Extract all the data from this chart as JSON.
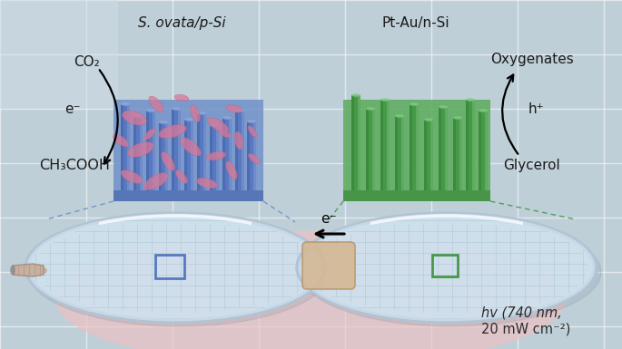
{
  "bg_color": "#bfcfd8",
  "white_line_color": "#d8e4ea",
  "pink_glow_color": "#f2bfbf",
  "left_label": "S. ovata/p-Si",
  "right_label": "Pt-Au/n-Si",
  "co2_label": "CO₂",
  "product_label": "CH₃COOH",
  "electron_label_left": "e⁻",
  "electron_label_center": "e⁻",
  "oxygenates_label": "Oxygenates",
  "h_plus_label": "h⁺",
  "glycerol_label": "Glycerol",
  "hv_line1": "hv (740 nm,",
  "hv_line2": "20 mW cm⁻²)",
  "blue_base_color": "#7090c8",
  "blue_wire_color": "#5878c0",
  "blue_wire_highlight": "#90aae0",
  "pink_bacteria_color": "#d87898",
  "pink_bacteria_dark": "#c06078",
  "green_base_color": "#5aaa5a",
  "green_wire_color": "#48984a",
  "green_wire_highlight": "#80cc80",
  "dish_fill_color": "#d0e4f0",
  "dish_rim_color": "#c8d8e8",
  "dish_rim_light": "#e8f0f8",
  "grid_color": "#a8c0d0",
  "connector_color": "#d4b896",
  "connector_edge": "#b89870",
  "tube_color": "#c8b0a0",
  "tube_edge": "#a89080",
  "blue_sq_color": "#5878c0",
  "green_sq_color": "#48984a",
  "text_color": "#1a1a1a",
  "arrow_color": "#1a1a1a",
  "dashed_blue": "#7090c8",
  "dashed_green": "#48984a"
}
